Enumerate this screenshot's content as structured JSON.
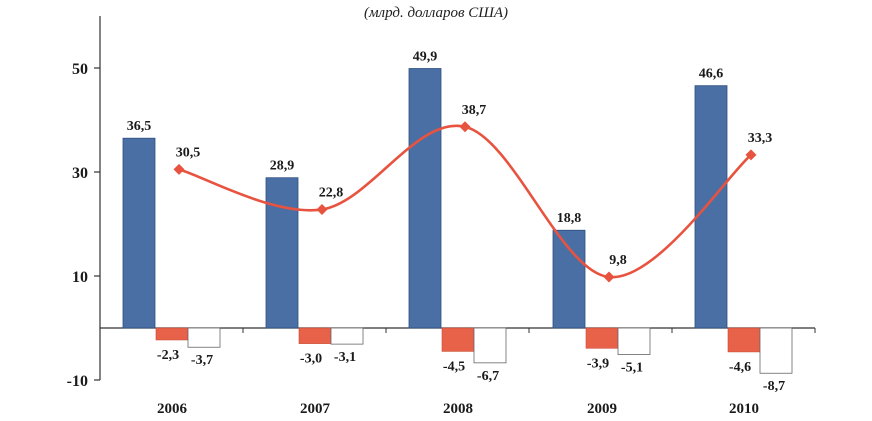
{
  "chart_data": {
    "type": "bar",
    "title": "",
    "subtitle": "(млрд. долларов США)",
    "xlabel": "",
    "ylabel": "",
    "categories": [
      "2006",
      "2007",
      "2008",
      "2009",
      "2010"
    ],
    "ylim": [
      -10,
      60
    ],
    "yticks": [
      -10,
      10,
      30,
      50
    ],
    "series": [
      {
        "kind": "bar",
        "color": "#4a6fa5",
        "values": [
          36.5,
          28.9,
          49.9,
          18.8,
          46.6
        ],
        "labels": [
          "36,5",
          "28,9",
          "49,9",
          "18,8",
          "46,6"
        ]
      },
      {
        "kind": "bar",
        "color": "#e8624a",
        "values": [
          -2.3,
          -3.0,
          -4.5,
          -3.9,
          -4.6
        ],
        "labels": [
          "-2,3",
          "-3,0",
          "-4,5",
          "-3,9",
          "-4,6"
        ]
      },
      {
        "kind": "bar",
        "color": "#ffffff",
        "values": [
          -3.7,
          -3.1,
          -6.7,
          -5.1,
          -8.7
        ],
        "labels": [
          "-3,7",
          "-3,1",
          "-6,7",
          "-5,1",
          "-8,7"
        ]
      },
      {
        "kind": "line",
        "color": "#e8533f",
        "values": [
          30.5,
          22.8,
          38.7,
          9.8,
          33.3
        ],
        "labels": [
          "30,5",
          "22,8",
          "38,7",
          "9,8",
          "33,3"
        ]
      }
    ],
    "grid": false,
    "legend": "none"
  }
}
